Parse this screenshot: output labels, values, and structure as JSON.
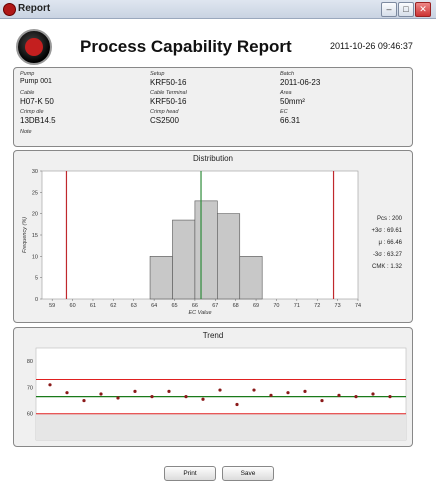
{
  "window": {
    "title": "Report"
  },
  "report": {
    "title": "Process Capability Report",
    "datetime": "2011-10-26 09:46:37"
  },
  "info": {
    "pump_label": "Pump",
    "pump": "Pump 001",
    "setup_label": "Setup",
    "setup": "KRF50-16",
    "batch_label": "Batch",
    "batch": "2011-06-23",
    "cable_label": "Cable",
    "cable": "H07-K 50",
    "cable_terminal_label": "Cable Terminal",
    "cable_terminal": "KRF50-16",
    "area_label": "Area",
    "area": "50mm²",
    "crimp_die_label": "Crimp die",
    "crimp_die": "13DB14.5",
    "crimp_head_label": "Crimp head",
    "crimp_head": "CS2500",
    "ec_label": "EC",
    "ec": "66.31",
    "note_label": "Note"
  },
  "distribution": {
    "title": "Distribution",
    "stats": {
      "pcs": "Pcs : 200",
      "plus3s": "+3σ : 69.61",
      "mu": "μ : 66.46",
      "minus3s": "-3σ : 63.27",
      "cmk": "CMK : 1.32"
    }
  },
  "trend": {
    "title": "Trend"
  },
  "buttons": {
    "print": "Print",
    "save": "Save"
  },
  "chart_data": [
    {
      "type": "bar",
      "title": "Distribution",
      "xlabel": "EC Value",
      "ylabel": "Frequency (%)",
      "xlim": [
        58.5,
        74
      ],
      "ylim": [
        0,
        30
      ],
      "xticks": [
        59,
        60,
        61,
        62,
        63,
        64,
        65,
        66,
        67,
        68,
        69,
        70,
        71,
        72,
        73,
        74
      ],
      "yticks": [
        0,
        5,
        10,
        15,
        20,
        25,
        30
      ],
      "bin_width": 1.1,
      "bins": [
        63.8,
        64.9,
        66.0,
        67.1,
        68.2
      ],
      "values": [
        10,
        18.5,
        23,
        20,
        10
      ],
      "lower_limit": 59.7,
      "upper_limit": 72.8,
      "mean": 66.3,
      "colors": {
        "bars": "#c8c8c8",
        "limits": "#c0282d",
        "mean": "#2e8b3a"
      }
    },
    {
      "type": "scatter",
      "title": "Trend",
      "ylim": [
        50,
        85
      ],
      "yticks": [
        60,
        70,
        80
      ],
      "upper_limit": 73,
      "mean": 66.5,
      "lower_limit": 60,
      "values": [
        71,
        68,
        65,
        67.5,
        66,
        68.5,
        66.5,
        68.5,
        66.5,
        65.5,
        69,
        63.5,
        69,
        67,
        68,
        68.5,
        65,
        67,
        66.5,
        67.5,
        66.5
      ],
      "colors": {
        "limits": "#e02020",
        "mean": "#1a7a1a",
        "points": "#8b1a1a"
      }
    }
  ]
}
